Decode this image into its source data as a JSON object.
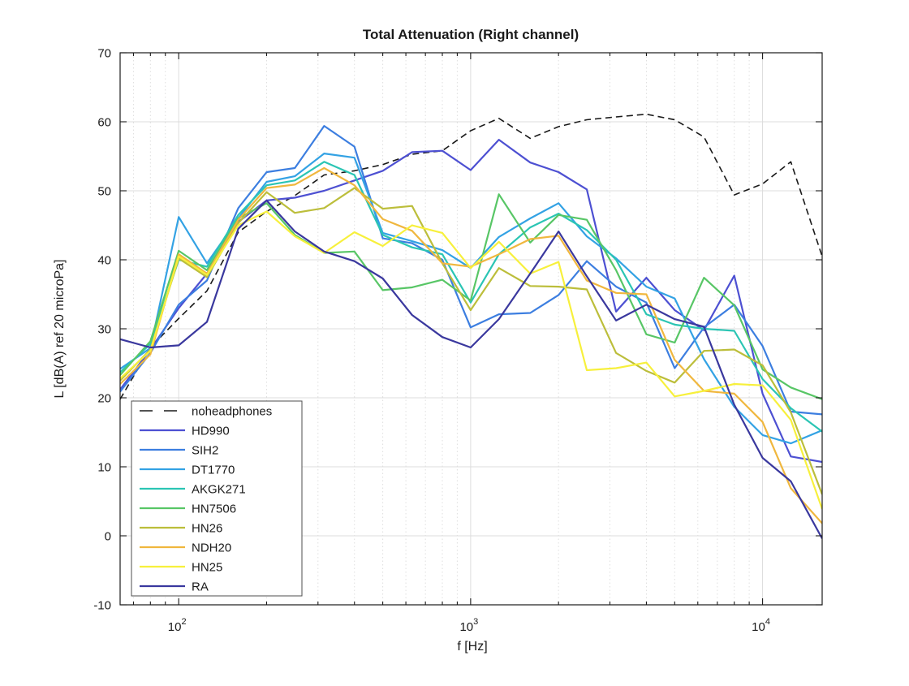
{
  "figure": {
    "title": "Total Attenuation (Right channel)",
    "xlabel": "f [Hz]",
    "ylabel": "L [dB(A) ref 20 microPa]"
  },
  "chart_data": {
    "type": "line",
    "title": "Total Attenuation (Right channel)",
    "xlabel": "f [Hz]",
    "ylabel": "L [dB(A) ref 20 microPa]",
    "x_scale": "log",
    "xlim": [
      63,
      16000
    ],
    "ylim": [
      -10,
      70
    ],
    "grid": true,
    "legend_position": "lower-left",
    "yticks": [
      -10,
      0,
      10,
      20,
      30,
      40,
      50,
      60,
      70
    ],
    "xticks_major": [
      100,
      1000,
      10000
    ],
    "xtick_labels": [
      "10^2",
      "10^3",
      "10^4"
    ],
    "frequencies": [
      63,
      80,
      100,
      125,
      160,
      200,
      250,
      315,
      400,
      500,
      630,
      800,
      1000,
      1250,
      1600,
      2000,
      2500,
      3150,
      4000,
      5000,
      6300,
      8000,
      10000,
      12500,
      16000
    ],
    "series": [
      {
        "name": "noheadphones",
        "color": "#1a1a1a",
        "dashed": true,
        "values": [
          19.8,
          27.3,
          31.5,
          35.5,
          44,
          47,
          49.3,
          52.3,
          52.9,
          53.8,
          55.3,
          55.8,
          58.7,
          60.5,
          57.6,
          59.3,
          60.3,
          60.7,
          61.1,
          60.3,
          57.8,
          49.4,
          51,
          54.2,
          40.5
        ]
      },
      {
        "name": "HD990",
        "color": "#4d50d2",
        "dashed": false,
        "values": [
          21.2,
          27,
          33,
          38,
          45.5,
          48.6,
          49,
          50,
          51.5,
          52.9,
          55.6,
          55.8,
          53,
          57.4,
          54.1,
          52.7,
          50.2,
          32.5,
          37.4,
          32.7,
          29.8,
          37.7,
          20.6,
          11.5,
          10.7
        ]
      },
      {
        "name": "SIH2",
        "color": "#3c7ee0",
        "dashed": false,
        "values": [
          20.9,
          26.5,
          33.5,
          37,
          47.5,
          52.7,
          53.3,
          59.4,
          56.4,
          43.1,
          42.4,
          40,
          30.2,
          32.1,
          32.3,
          34.9,
          39.8,
          36.1,
          33.8,
          24.3,
          30.2,
          33.5,
          27.5,
          18,
          17.6
        ]
      },
      {
        "name": "DT1770",
        "color": "#33a2e4",
        "dashed": false,
        "values": [
          24.2,
          27.2,
          46.2,
          39.5,
          46,
          51.3,
          52.1,
          55.4,
          54.8,
          43.9,
          42.7,
          41.4,
          38.8,
          43.3,
          46,
          48.2,
          43.4,
          40.2,
          36.1,
          34.4,
          25.6,
          18.7,
          14.6,
          13.4,
          15.3
        ]
      },
      {
        "name": "AKGK271",
        "color": "#2bc5b4",
        "dashed": false,
        "values": [
          23.7,
          27.8,
          40,
          39,
          46.5,
          50.8,
          51.5,
          54.2,
          52.3,
          43.6,
          41.8,
          40.8,
          33.8,
          40.8,
          44.7,
          46.7,
          44.3,
          40,
          32.1,
          30.6,
          30,
          29.7,
          22.7,
          18.5,
          15.1
        ]
      },
      {
        "name": "HN7506",
        "color": "#58c666",
        "dashed": false,
        "values": [
          23.3,
          28.2,
          41.3,
          38.5,
          46,
          48.2,
          43.6,
          41,
          41.2,
          35.6,
          36,
          37.1,
          34.1,
          49.5,
          42.5,
          46.5,
          45.8,
          38.5,
          29.2,
          28,
          37.4,
          33.4,
          24.1,
          21.5,
          19.8
        ]
      },
      {
        "name": "HN26",
        "color": "#bcbe3b",
        "dashed": false,
        "values": [
          22.5,
          27,
          40.2,
          37.5,
          45.3,
          49.8,
          46.8,
          47.5,
          50.4,
          47.4,
          47.8,
          39.5,
          32.7,
          38.8,
          36.2,
          36.1,
          35.7,
          26.5,
          23.9,
          22.2,
          26.8,
          27,
          24.7,
          17.9,
          6
        ]
      },
      {
        "name": "NDH20",
        "color": "#f0b73e",
        "dashed": false,
        "values": [
          22,
          26.3,
          40.8,
          38,
          45.8,
          50.4,
          50.9,
          53.3,
          50.8,
          45.9,
          44.2,
          39.5,
          39,
          40.8,
          43,
          43.5,
          37,
          35.2,
          35,
          25.5,
          21,
          20.6,
          16.5,
          6.9,
          1.8
        ]
      },
      {
        "name": "HN25",
        "color": "#f7f03c",
        "dashed": false,
        "values": [
          22.8,
          26.8,
          40.5,
          37.8,
          45,
          47,
          43.4,
          41,
          44,
          42,
          45,
          43.9,
          38.8,
          42.6,
          38,
          39.7,
          24,
          24.3,
          25.1,
          20.2,
          21,
          22,
          21.8,
          16.8,
          3.9
        ]
      },
      {
        "name": "RA",
        "color": "#3a389e",
        "dashed": false,
        "values": [
          28.5,
          27.3,
          27.6,
          31,
          44.5,
          48.6,
          44.1,
          41.2,
          39.8,
          37.3,
          32,
          28.8,
          27.3,
          31.4,
          38,
          44.1,
          37.6,
          31.2,
          33.5,
          31.4,
          30.3,
          19,
          11.3,
          7.9,
          -0.4
        ]
      }
    ]
  }
}
